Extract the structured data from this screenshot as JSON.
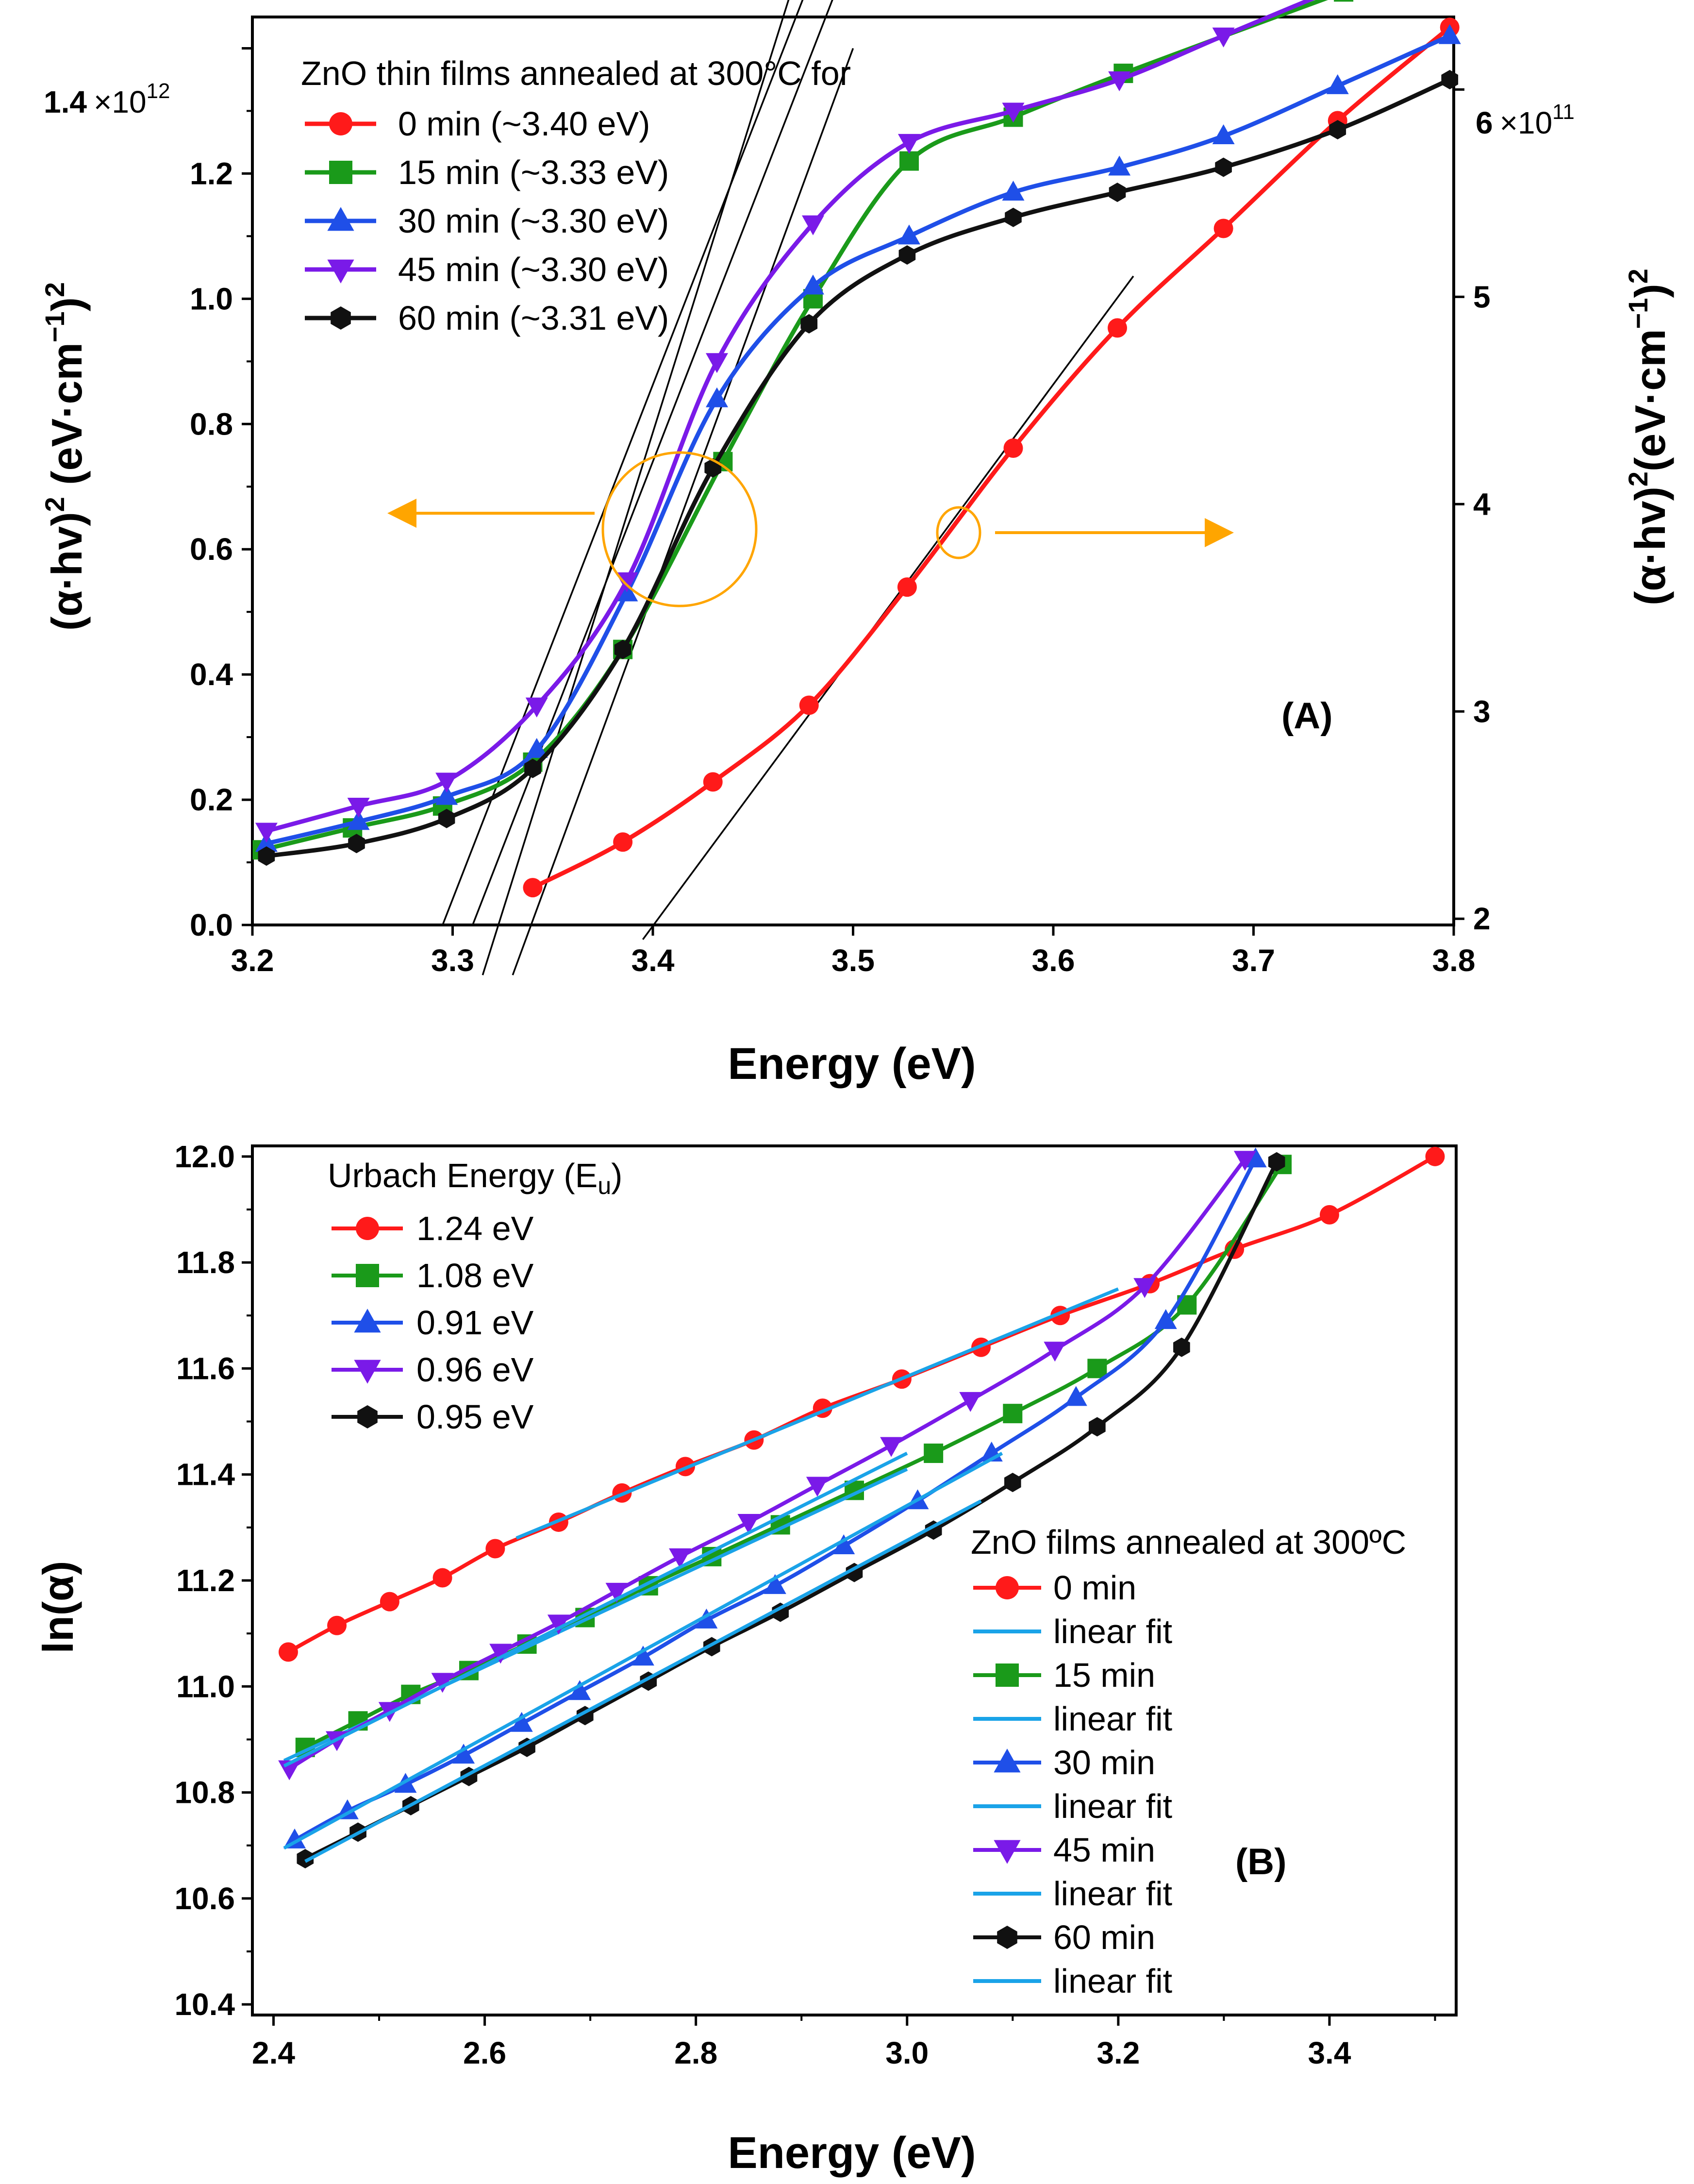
{
  "chart_data": [
    {
      "type": "line",
      "panel": "(A)",
      "title": "",
      "panel_label": "(A)",
      "xlabel": "Energy (eV)",
      "ylabel": "(α·hv)",
      "ylabel_sup1": "2",
      "ylabel_unit": " (eV·cm",
      "ylabel_sup2": "−1",
      "ylabel_close": ")",
      "ylabel_sup3": "2",
      "y2label": "(α·hv)",
      "y2label_sup1": "2",
      "y2label_unit": "(eV·cm",
      "y2label_sup2": "−1",
      "y2label_close": ")",
      "y2label_sup3": "2",
      "xlim": [
        3.2,
        3.8
      ],
      "ylim": [
        0,
        1450000000000.0
      ],
      "y2lim": [
        197000000000.0,
        635000000000.0
      ],
      "x_ticks": [
        "3.2",
        "3.3",
        "3.4",
        "3.5",
        "3.6",
        "3.7",
        "3.8"
      ],
      "y_ticks": [
        "0.0",
        "0.2",
        "0.4",
        "0.6",
        "0.8",
        "1.0",
        "1.2"
      ],
      "y_top_tick_mantissa": "1.4",
      "y_top_tick_exp_base": "×10",
      "y_top_tick_exp": "12",
      "y2_ticks": [
        "2",
        "3",
        "4",
        "5"
      ],
      "y2_top_tick_mantissa": "6",
      "y2_top_tick_exp_base": "×10",
      "y2_top_tick_exp": "11",
      "legend_title": "ZnO thin films annealed at 300°C for",
      "legend_position": "top-left",
      "series": [
        {
          "name": "0 min (~3.40 eV)",
          "color": "#ff1a1a",
          "marker": "circle",
          "axis": "right",
          "x": [
            3.34,
            3.385,
            3.43,
            3.478,
            3.527,
            3.58,
            3.632,
            3.685,
            3.742,
            3.798
          ],
          "y": [
            215000000000.0,
            237000000000.0,
            266000000000.0,
            303000000000.0,
            360000000000.0,
            427000000000.0,
            485000000000.0,
            533000000000.0,
            585000000000.0,
            630000000000.0
          ]
        },
        {
          "name": "15 min (~3.33 eV)",
          "color": "#1a9a1a",
          "marker": "square",
          "axis": "left",
          "x": [
            3.205,
            3.25,
            3.295,
            3.34,
            3.385,
            3.435,
            3.48,
            3.528,
            3.58,
            3.635,
            3.745
          ],
          "y": [
            120000000000.0,
            155000000000.0,
            190000000000.0,
            260000000000.0,
            440000000000.0,
            740000000000.0,
            1000000000000.0,
            1220000000000.0,
            1290000000000.0,
            1360000000000.0,
            1490000000000.0
          ]
        },
        {
          "name": "30 min (~3.30 eV)",
          "color": "#1f4fe8",
          "marker": "triangle-up",
          "axis": "left",
          "x": [
            3.207,
            3.253,
            3.297,
            3.342,
            3.387,
            3.432,
            3.48,
            3.528,
            3.58,
            3.633,
            3.685,
            3.742,
            3.798
          ],
          "y": [
            130000000000.0,
            165000000000.0,
            205000000000.0,
            280000000000.0,
            530000000000.0,
            840000000000.0,
            1020000000000.0,
            1100000000000.0,
            1170000000000.0,
            1210000000000.0,
            1260000000000.0,
            1340000000000.0,
            1420000000000.0
          ]
        },
        {
          "name": "45 min (~3.30 eV)",
          "color": "#7a1ae8",
          "marker": "triangle-down",
          "axis": "left",
          "x": [
            3.207,
            3.253,
            3.297,
            3.342,
            3.387,
            3.432,
            3.48,
            3.528,
            3.58,
            3.633,
            3.685,
            3.745
          ],
          "y": [
            150000000000.0,
            190000000000.0,
            230000000000.0,
            350000000000.0,
            550000000000.0,
            900000000000.0,
            1120000000000.0,
            1250000000000.0,
            1300000000000.0,
            1350000000000.0,
            1420000000000.0,
            1500000000000.0
          ]
        },
        {
          "name": "60 min (~3.31 eV)",
          "color": "#111111",
          "marker": "hexagon",
          "axis": "left",
          "x": [
            3.207,
            3.252,
            3.297,
            3.34,
            3.385,
            3.43,
            3.478,
            3.527,
            3.58,
            3.632,
            3.685,
            3.742,
            3.798
          ],
          "y": [
            110000000000.0,
            130000000000.0,
            170000000000.0,
            250000000000.0,
            440000000000.0,
            730000000000.0,
            960000000000.0,
            1070000000000.0,
            1130000000000.0,
            1170000000000.0,
            1210000000000.0,
            1270000000000.0,
            1350000000000.0
          ]
        }
      ],
      "tangent_lines": [
        {
          "series": "15 min",
          "intercept_x": 3.33
        },
        {
          "series": "30 min",
          "intercept_x": 3.3
        },
        {
          "series": "45 min",
          "intercept_x": 3.3
        },
        {
          "series": "60 min",
          "intercept_x": 3.31
        },
        {
          "series": "0 min",
          "intercept_x": 3.4
        }
      ],
      "annotations": [
        "orange circle with arrow pointing to left axis",
        "orange circle with arrow pointing to right axis"
      ]
    },
    {
      "type": "line",
      "panel": "(B)",
      "title": "",
      "panel_label": "(B)",
      "xlabel": "Energy (eV)",
      "ylabel": "ln(α)",
      "xlim": [
        2.38,
        3.52
      ],
      "ylim": [
        10.38,
        12.02
      ],
      "x_ticks": [
        "2.4",
        "2.6",
        "2.8",
        "3.0",
        "3.2",
        "3.4"
      ],
      "y_ticks": [
        "10.4",
        "10.6",
        "10.8",
        "11.0",
        "11.2",
        "11.4",
        "11.6",
        "11.8",
        "12.0"
      ],
      "legend1_title": "Urbach Energy (E",
      "legend1_title_sub": "u",
      "legend1_title_close": ")",
      "legend1_position": "top-left",
      "legend1_entries": [
        "1.24 eV",
        "1.08 eV",
        "0.91 eV",
        "0.96 eV",
        "0.95 eV"
      ],
      "legend2_title": "ZnO films annealed at 300ºC",
      "legend2_position": "bottom-right",
      "legend2_entries": [
        "0 min",
        "linear fit",
        "15 min",
        "linear fit",
        "30 min",
        "linear fit",
        "45 min",
        "linear fit",
        "60 min",
        "linear fit"
      ],
      "fit_color": "#1aa3e8",
      "series": [
        {
          "name": "0 min",
          "urbach": "1.24 eV",
          "color": "#ff1a1a",
          "marker": "circle",
          "x": [
            2.414,
            2.46,
            2.51,
            2.56,
            2.61,
            2.67,
            2.73,
            2.79,
            2.855,
            2.92,
            2.995,
            3.07,
            3.145,
            3.23,
            3.31,
            3.4,
            3.5
          ],
          "y": [
            11.065,
            11.115,
            11.16,
            11.205,
            11.26,
            11.31,
            11.365,
            11.415,
            11.465,
            11.525,
            11.58,
            11.64,
            11.7,
            11.76,
            11.825,
            11.89,
            12.0
          ],
          "fit": [
            [
              2.63,
              11.28
            ],
            [
              3.2,
              11.75
            ]
          ]
        },
        {
          "name": "15 min",
          "urbach": "1.08 eV",
          "color": "#1a9a1a",
          "marker": "square",
          "x": [
            2.43,
            2.48,
            2.53,
            2.585,
            2.64,
            2.695,
            2.755,
            2.815,
            2.88,
            2.95,
            3.025,
            3.1,
            3.18,
            3.265,
            3.355
          ],
          "y": [
            10.885,
            10.935,
            10.985,
            11.03,
            11.08,
            11.13,
            11.19,
            11.245,
            11.305,
            11.37,
            11.44,
            11.515,
            11.6,
            11.72,
            11.985
          ],
          "fit": [
            [
              2.41,
              10.86
            ],
            [
              3.0,
              11.41
            ]
          ]
        },
        {
          "name": "30 min",
          "urbach": "0.91 eV",
          "color": "#1f4fe8",
          "marker": "triangle-up",
          "x": [
            2.42,
            2.47,
            2.525,
            2.58,
            2.635,
            2.69,
            2.75,
            2.81,
            2.875,
            2.94,
            3.01,
            3.08,
            3.16,
            3.245,
            3.33
          ],
          "y": [
            10.71,
            10.765,
            10.815,
            10.87,
            10.93,
            10.99,
            11.055,
            11.125,
            11.19,
            11.265,
            11.35,
            11.44,
            11.545,
            11.69,
            11.995
          ],
          "fit": [
            [
              2.41,
              10.695
            ],
            [
              3.09,
              11.44
            ]
          ]
        },
        {
          "name": "45 min",
          "urbach": "0.96 eV",
          "color": "#7a1ae8",
          "marker": "triangle-down",
          "x": [
            2.415,
            2.46,
            2.51,
            2.56,
            2.615,
            2.67,
            2.725,
            2.785,
            2.85,
            2.915,
            2.985,
            3.06,
            3.14,
            3.225,
            3.32
          ],
          "y": [
            10.845,
            10.9,
            10.955,
            11.01,
            11.065,
            11.12,
            11.18,
            11.245,
            11.31,
            11.38,
            11.455,
            11.54,
            11.635,
            11.755,
            11.995
          ],
          "fit": [
            [
              2.41,
              10.85
            ],
            [
              3.0,
              11.44
            ]
          ]
        },
        {
          "name": "60 min",
          "urbach": "0.95 eV",
          "color": "#111111",
          "marker": "hexagon",
          "x": [
            2.43,
            2.48,
            2.53,
            2.585,
            2.64,
            2.695,
            2.755,
            2.815,
            2.88,
            2.95,
            3.025,
            3.1,
            3.18,
            3.26,
            3.35
          ],
          "y": [
            10.675,
            10.725,
            10.775,
            10.83,
            10.885,
            10.945,
            11.01,
            11.075,
            11.14,
            11.215,
            11.295,
            11.385,
            11.49,
            11.64,
            11.99
          ],
          "fit": [
            [
              2.43,
              10.67
            ],
            [
              3.07,
              11.35
            ]
          ]
        }
      ]
    }
  ]
}
